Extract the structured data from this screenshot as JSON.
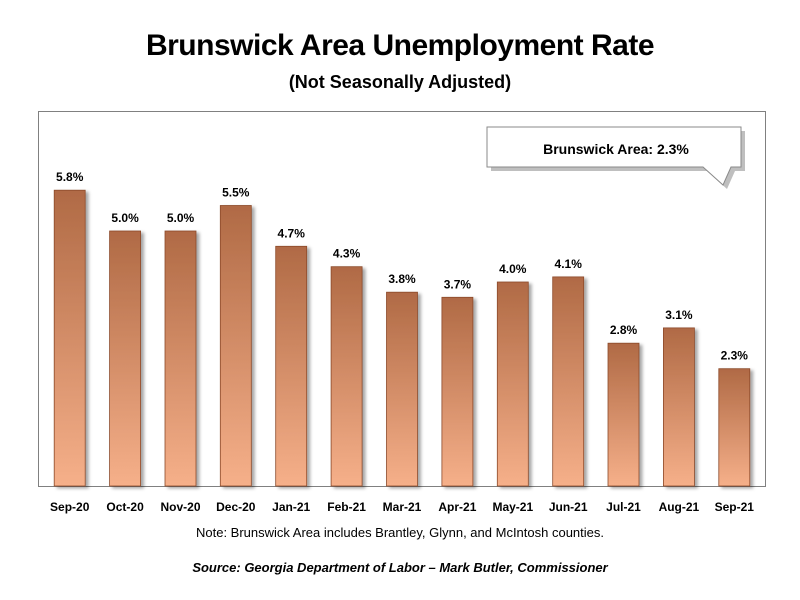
{
  "title": "Brunswick Area Unemployment Rate",
  "subtitle": "(Not Seasonally Adjusted)",
  "callout": "Brunswick Area: 2.3%",
  "note": "Note: Brunswick Area includes Brantley, Glynn, and McIntosh counties.",
  "source": "Source:  Georgia Department of Labor – Mark Butler, Commissioner",
  "colors": {
    "bar_top": "#B06A45",
    "bar_bottom": "#F6B08A",
    "bar_edge": "#8C4A2A"
  },
  "chart_data": {
    "type": "bar",
    "title": "Brunswick Area Unemployment Rate",
    "subtitle": "(Not Seasonally Adjusted)",
    "xlabel": "",
    "ylabel": "",
    "grid": false,
    "legend": "none",
    "ylim": [
      0,
      7
    ],
    "categories": [
      "Sep-20",
      "Oct-20",
      "Nov-20",
      "Dec-20",
      "Jan-21",
      "Feb-21",
      "Mar-21",
      "Apr-21",
      "May-21",
      "Jun-21",
      "Jul-21",
      "Aug-21",
      "Sep-21"
    ],
    "values": [
      5.8,
      5.0,
      5.0,
      5.5,
      4.7,
      4.3,
      3.8,
      3.7,
      4.0,
      4.1,
      2.8,
      3.1,
      2.3
    ],
    "value_labels": [
      "5.8%",
      "5.0%",
      "5.0%",
      "5.5%",
      "4.7%",
      "4.3%",
      "3.8%",
      "3.7%",
      "4.0%",
      "4.1%",
      "2.8%",
      "3.1%",
      "2.3%"
    ]
  }
}
